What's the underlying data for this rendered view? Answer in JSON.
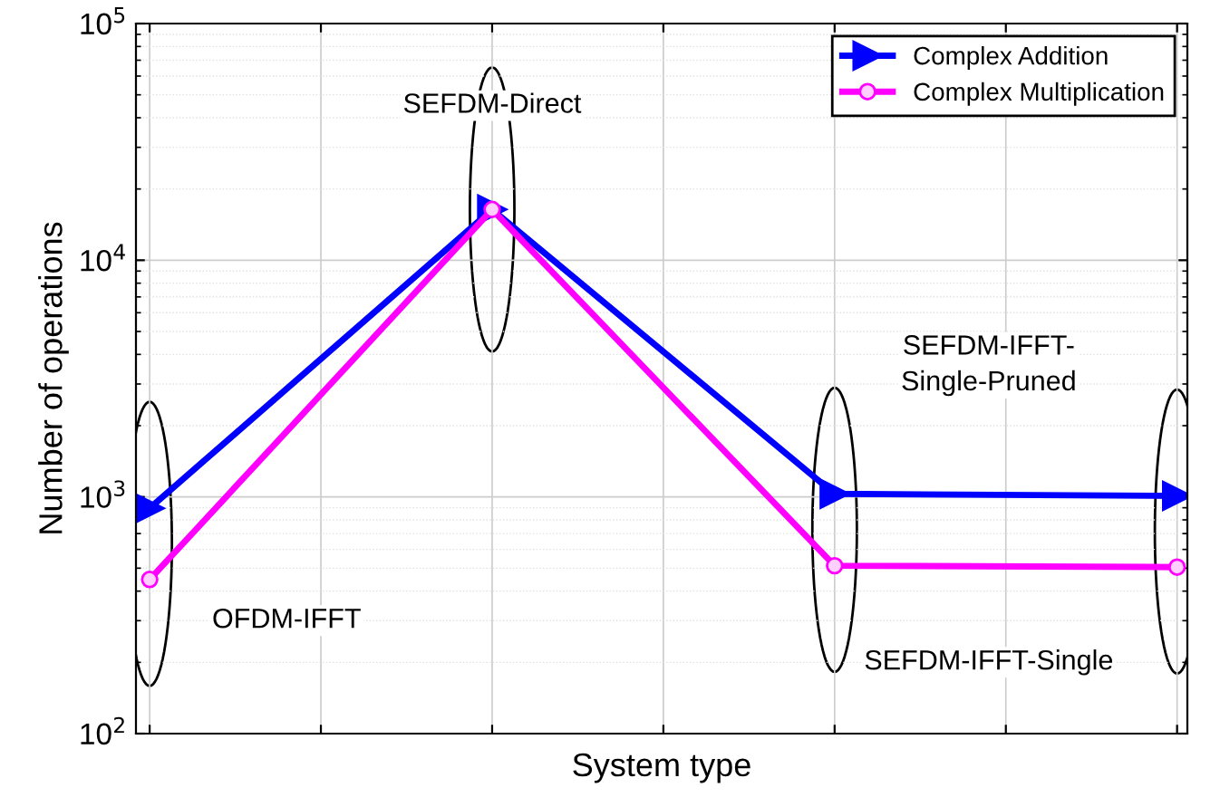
{
  "chart_data": {
    "type": "line",
    "xlabel": "System type",
    "ylabel": "Number of operations",
    "categories": [
      null,
      null,
      null,
      null
    ],
    "series": [
      {
        "name": "Complex Addition",
        "color": "#0000ff",
        "marker": "triangle",
        "values": [
          896,
          16384,
          1030,
          1010
        ]
      },
      {
        "name": "Complex Multiplication",
        "color": "#ff00ff",
        "marker": "circle",
        "values": [
          448,
          16384,
          512,
          505
        ]
      }
    ],
    "log": "y",
    "ylim": [
      100,
      100000
    ],
    "yticks": [
      {
        "value": 100,
        "label": "10$^{2}$"
      },
      {
        "value": 1000,
        "label": "10$^{3}$"
      },
      {
        "value": 10000,
        "label": "10$^{4}$"
      },
      {
        "value": 100000,
        "label": "10$^{5}$"
      }
    ],
    "grid": true,
    "legend": "top right",
    "line_style": "solid",
    "annotations": [
      "OFDM-IFFT",
      "SEFDM-Direct",
      "SEFDM-IFFT-Single",
      "SEFDM-IFFT-\nSingle-Pruned"
    ]
  }
}
